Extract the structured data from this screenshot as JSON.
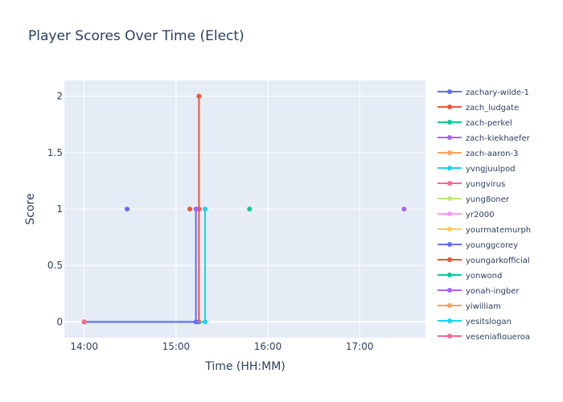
{
  "chart_data": {
    "type": "line",
    "title": "Player Scores Over Time (Elect)",
    "xlabel": "Time (HH:MM)",
    "ylabel": "Score",
    "xlim": [
      "13:47",
      "17:43"
    ],
    "ylim": [
      -0.14,
      2.14
    ],
    "x_ticks": [
      "14:00",
      "15:00",
      "16:00",
      "17:00"
    ],
    "y_ticks": [
      0,
      0.5,
      1,
      1.5,
      2
    ],
    "y_tick_labels": [
      "0",
      "0.5",
      "1",
      "1.5",
      "2"
    ],
    "grid": true,
    "legend_position": "right",
    "series": [
      {
        "name": "zachary-wilde-1",
        "color": "#636efa",
        "points": [
          {
            "x": "14:28",
            "y": 1
          }
        ]
      },
      {
        "name": "zach_ludgate",
        "color": "#EF553B",
        "points": [
          {
            "x": "14:00",
            "y": 0
          },
          {
            "x": "15:15",
            "y": 0
          },
          {
            "x": "15:15",
            "y": 1
          },
          {
            "x": "15:15",
            "y": 2
          }
        ]
      },
      {
        "name": "zach-perkel",
        "color": "#00cc96",
        "points": [
          {
            "x": "15:48",
            "y": 1
          }
        ]
      },
      {
        "name": "zach-kiekhaefer",
        "color": "#ab63fa",
        "points": [
          {
            "x": "17:29",
            "y": 1
          }
        ]
      },
      {
        "name": "zach-aaron-3",
        "color": "#FFA15A",
        "points": [
          {
            "x": "14:00",
            "y": 0
          }
        ]
      },
      {
        "name": "yvngjuulpod",
        "color": "#19d3f3",
        "points": [
          {
            "x": "14:00",
            "y": 0
          },
          {
            "x": "15:19",
            "y": 0
          },
          {
            "x": "15:19",
            "y": 1
          }
        ]
      },
      {
        "name": "yungvirus",
        "color": "#FF6692",
        "points": [
          {
            "x": "14:00",
            "y": 0
          }
        ]
      },
      {
        "name": "yung8oner",
        "color": "#B6E880",
        "points": [
          {
            "x": "14:00",
            "y": 0
          }
        ]
      },
      {
        "name": "yr2000",
        "color": "#FF97FF",
        "points": [
          {
            "x": "14:00",
            "y": 0
          }
        ]
      },
      {
        "name": "yourmatemurph",
        "color": "#FECB52",
        "points": [
          {
            "x": "14:00",
            "y": 0
          }
        ]
      },
      {
        "name": "younggcorey",
        "color": "#636efa",
        "points": [
          {
            "x": "14:00",
            "y": 0
          },
          {
            "x": "15:13",
            "y": 0
          },
          {
            "x": "15:13",
            "y": 1
          }
        ]
      },
      {
        "name": "youngarkofficial",
        "color": "#EF553B",
        "points": [
          {
            "x": "15:09",
            "y": 1
          }
        ]
      },
      {
        "name": "yonwond",
        "color": "#00cc96",
        "points": [
          {
            "x": "14:00",
            "y": 0
          }
        ]
      },
      {
        "name": "yonah-ingber",
        "color": "#ab63fa",
        "points": [
          {
            "x": "15:13",
            "y": 1
          }
        ]
      },
      {
        "name": "yiwilliam",
        "color": "#FFA15A",
        "points": [
          {
            "x": "14:00",
            "y": 0
          }
        ]
      },
      {
        "name": "yesitslogan",
        "color": "#19d3f3",
        "points": [
          {
            "x": "14:00",
            "y": 0
          }
        ]
      },
      {
        "name": "yeseniafigueroa",
        "color": "#FF6692",
        "points": [
          {
            "x": "14:00",
            "y": 0
          }
        ]
      }
    ]
  }
}
